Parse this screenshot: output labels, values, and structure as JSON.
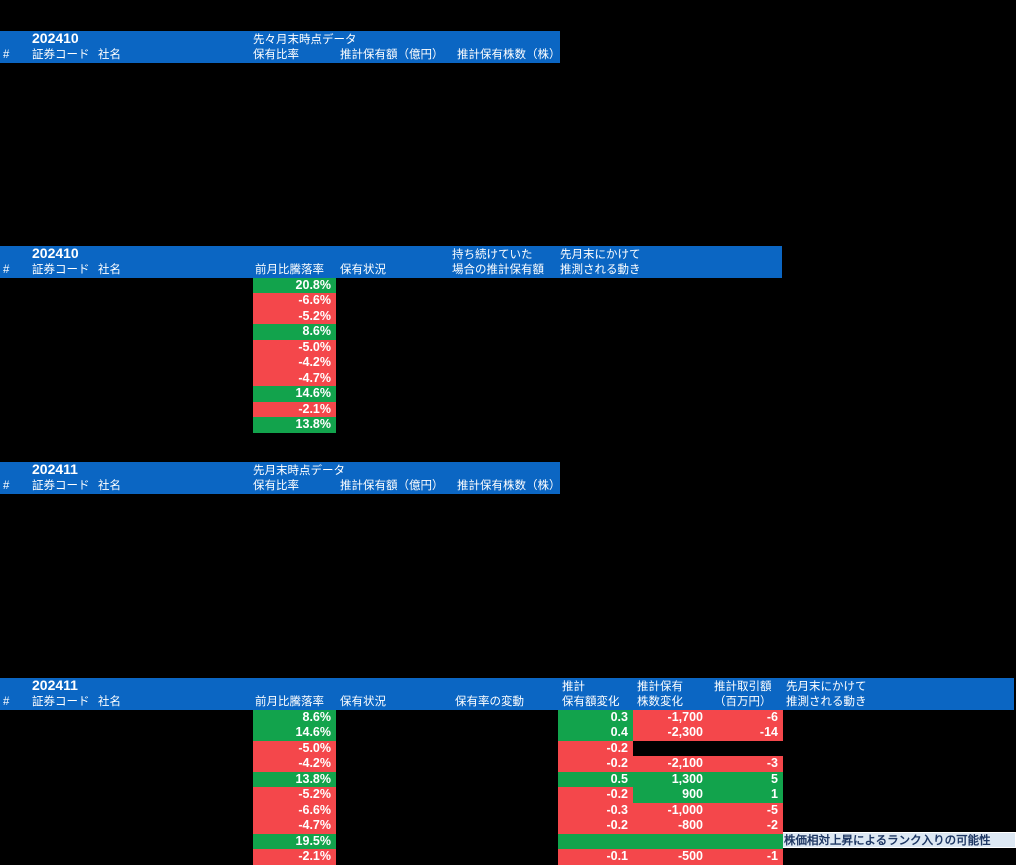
{
  "colors": {
    "header_bg": "#0b66c3",
    "up": "#12a34c",
    "down": "#f4474b",
    "tooltip_bg": "#dde8f3",
    "tooltip_text": "#1f3864"
  },
  "sections": [
    {
      "kind": "snapshot",
      "title": "202410",
      "subtitle": "先々月末時点データ",
      "columns": [
        "#",
        "証券コード",
        "社名",
        "保有比率",
        "推計保有額（億円）",
        "推計保有株数（株）"
      ]
    },
    {
      "kind": "moves",
      "title": "202410",
      "group_headers": [
        "持ち続けていた",
        "先月末にかけて"
      ],
      "columns": [
        "#",
        "証券コード",
        "社名",
        "前月比騰落率",
        "保有状況",
        "場合の推計保有額",
        "推測される動き"
      ],
      "rows": [
        {
          "pct": "20.8%",
          "dir": "up"
        },
        {
          "pct": "-6.6%",
          "dir": "down"
        },
        {
          "pct": "-5.2%",
          "dir": "down"
        },
        {
          "pct": "8.6%",
          "dir": "up"
        },
        {
          "pct": "-5.0%",
          "dir": "down"
        },
        {
          "pct": "-4.2%",
          "dir": "down"
        },
        {
          "pct": "-4.7%",
          "dir": "down"
        },
        {
          "pct": "14.6%",
          "dir": "up"
        },
        {
          "pct": "-2.1%",
          "dir": "down"
        },
        {
          "pct": "13.8%",
          "dir": "up"
        }
      ]
    },
    {
      "kind": "snapshot",
      "title": "202411",
      "subtitle": "先月末時点データ",
      "columns": [
        "#",
        "証券コード",
        "社名",
        "保有比率",
        "推計保有額（億円）",
        "推計保有株数（株）"
      ]
    },
    {
      "kind": "moves-detail",
      "title": "202411",
      "group_headers": [
        "推計",
        "推計保有",
        "推計取引額",
        "先月末にかけて"
      ],
      "columns": [
        "#",
        "証券コード",
        "社名",
        "前月比騰落率",
        "保有状況",
        "保有率の変動",
        "保有額変化",
        "株数変化",
        "（百万円）",
        "推測される動き"
      ],
      "rows": [
        {
          "pct": "8.6%",
          "dir": "up",
          "value": "0.3",
          "value_dir": "up",
          "shares": "-1,700",
          "shares_dir": "down",
          "amount": "-6",
          "amount_dir": "down"
        },
        {
          "pct": "14.6%",
          "dir": "up",
          "value": "0.4",
          "value_dir": "up",
          "shares": "-2,300",
          "shares_dir": "down",
          "amount": "-14",
          "amount_dir": "down"
        },
        {
          "pct": "-5.0%",
          "dir": "down",
          "value": "-0.2",
          "value_dir": "down",
          "shares": null,
          "shares_dir": null,
          "amount": null,
          "amount_dir": null
        },
        {
          "pct": "-4.2%",
          "dir": "down",
          "value": "-0.2",
          "value_dir": "down",
          "shares": "-2,100",
          "shares_dir": "down",
          "amount": "-3",
          "amount_dir": "down"
        },
        {
          "pct": "13.8%",
          "dir": "up",
          "value": "0.5",
          "value_dir": "up",
          "shares": "1,300",
          "shares_dir": "up",
          "amount": "5",
          "amount_dir": "up"
        },
        {
          "pct": "-5.2%",
          "dir": "down",
          "value": "-0.2",
          "value_dir": "down",
          "shares": "900",
          "shares_dir": "up",
          "amount": "1",
          "amount_dir": "up"
        },
        {
          "pct": "-6.6%",
          "dir": "down",
          "value": "-0.3",
          "value_dir": "down",
          "shares": "-1,000",
          "shares_dir": "down",
          "amount": "-5",
          "amount_dir": "down"
        },
        {
          "pct": "-4.7%",
          "dir": "down",
          "value": "-0.2",
          "value_dir": "down",
          "shares": "-800",
          "shares_dir": "down",
          "amount": "-2",
          "amount_dir": "down"
        },
        {
          "pct": "19.5%",
          "dir": "up",
          "highlight_span": true
        },
        {
          "pct": "-2.1%",
          "dir": "down",
          "value": "-0.1",
          "value_dir": "down",
          "shares": "-500",
          "shares_dir": "down",
          "amount": "-1",
          "amount_dir": "down"
        }
      ],
      "tooltip": "株価相対上昇によるランク入りの可能性"
    }
  ]
}
